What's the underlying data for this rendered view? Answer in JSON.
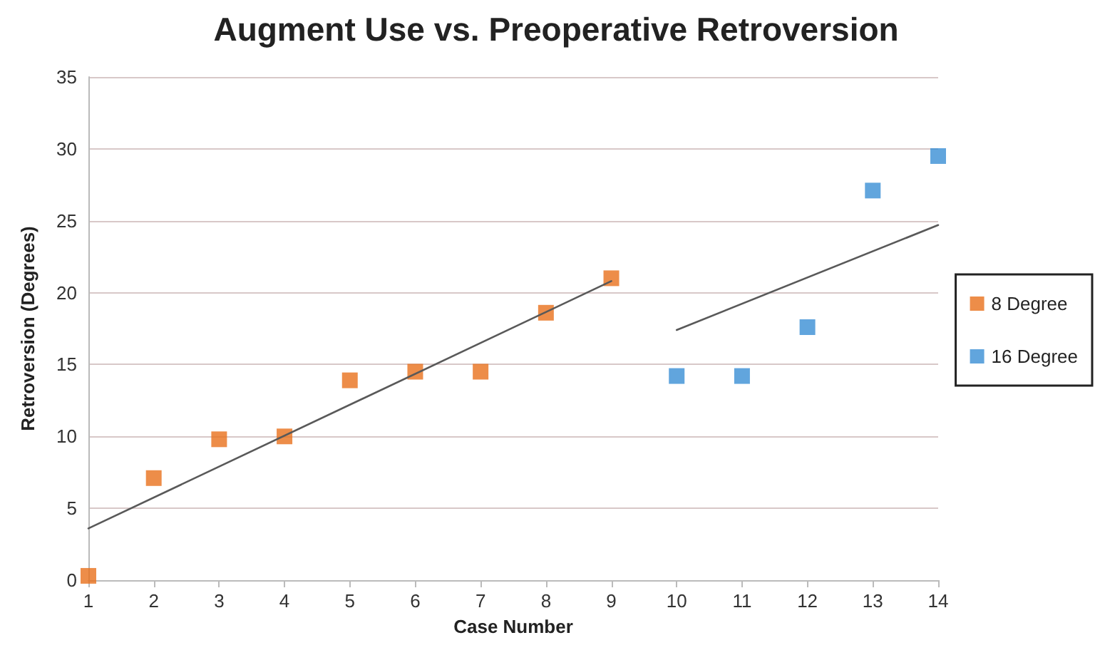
{
  "chart_data": {
    "type": "scatter",
    "title": "Augment Use vs. Preoperative Retroversion",
    "xlabel": "Case Number",
    "ylabel": "Retroversion (Degrees)",
    "xlim": [
      1,
      14
    ],
    "xticks": [
      1,
      2,
      3,
      4,
      5,
      6,
      7,
      8,
      9,
      10,
      11,
      12,
      13,
      14
    ],
    "ylim": [
      0,
      35
    ],
    "yticks": [
      0,
      5,
      10,
      15,
      20,
      25,
      30,
      35
    ],
    "grid": "y",
    "legend": "right",
    "marker": "square",
    "series": [
      {
        "name": "8 Degree",
        "color": "#e8711c",
        "x": [
          1,
          2,
          3,
          4,
          5,
          6,
          7,
          8,
          9
        ],
        "values": [
          0.3,
          7.1,
          9.8,
          10.0,
          13.9,
          14.5,
          14.5,
          18.6,
          21.0
        ]
      },
      {
        "name": "16 Degree",
        "color": "#3a8fd4",
        "x": [
          10,
          11,
          12,
          13,
          14
        ],
        "values": [
          14.2,
          14.2,
          17.6,
          27.1,
          29.5
        ]
      },
      {
        "type": "line",
        "marker": "none",
        "color": "#595959",
        "x": [
          1,
          9
        ],
        "values": [
          3.6,
          20.8
        ]
      },
      {
        "type": "line",
        "marker": "none",
        "color": "#595959",
        "x": [
          10,
          14
        ],
        "values": [
          17.4,
          24.7
        ]
      }
    ]
  }
}
